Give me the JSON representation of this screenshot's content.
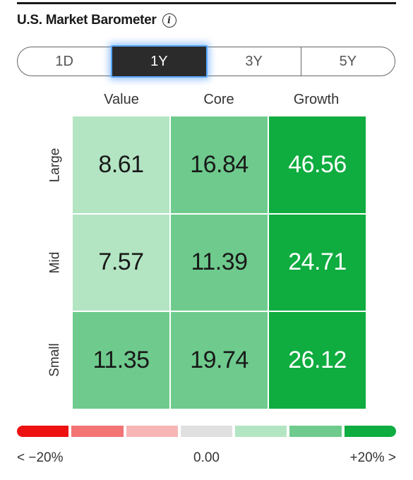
{
  "header": {
    "title": "U.S. Market Barometer",
    "info_icon": "info-icon",
    "info_glyph": "i"
  },
  "tabs": [
    {
      "label": "1D",
      "active": false
    },
    {
      "label": "1Y",
      "active": true
    },
    {
      "label": "3Y",
      "active": false
    },
    {
      "label": "5Y",
      "active": false
    }
  ],
  "grid": {
    "columns": [
      "Value",
      "Core",
      "Growth"
    ],
    "rows": [
      "Large",
      "Mid",
      "Small"
    ],
    "values": [
      [
        "8.61",
        "16.84",
        "46.56"
      ],
      [
        "7.57",
        "11.39",
        "24.71"
      ],
      [
        "11.35",
        "19.74",
        "26.12"
      ]
    ],
    "cell_colors": [
      [
        "#b3e5c3",
        "#6ecb8d",
        "#0fac3f"
      ],
      [
        "#b3e5c3",
        "#6ecb8d",
        "#0fac3f"
      ],
      [
        "#6ecb8d",
        "#6ecb8d",
        "#0fac3f"
      ]
    ],
    "text_colors": [
      [
        "#1a1a1a",
        "#1a1a1a",
        "#ffffff"
      ],
      [
        "#1a1a1a",
        "#1a1a1a",
        "#ffffff"
      ],
      [
        "#1a1a1a",
        "#1a1a1a",
        "#ffffff"
      ]
    ]
  },
  "legend": {
    "colors": [
      "#ee1111",
      "#f27474",
      "#f7b5b5",
      "#e0e0e0",
      "#b3e5c3",
      "#6ecb8d",
      "#0fac3f"
    ],
    "min_label": "< −20%",
    "mid_label": "0.00",
    "max_label": "+20% >"
  }
}
